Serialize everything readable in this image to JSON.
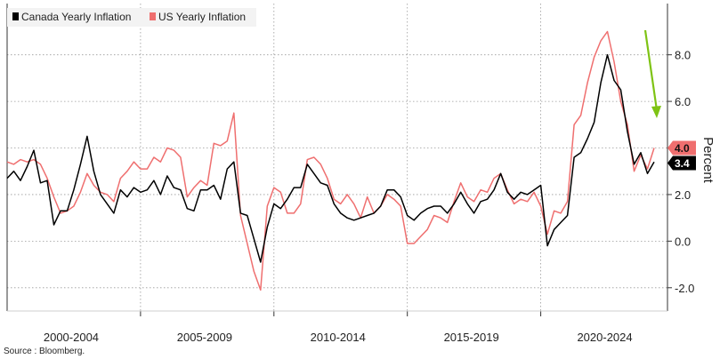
{
  "chart_data": {
    "type": "line",
    "ylabel": "Percent",
    "ylim": [
      -3.0,
      10.2
    ],
    "xlim": [
      2000.0,
      2024.75
    ],
    "yticks": [
      -2.0,
      0.0,
      2.0,
      4.0,
      6.0,
      8.0
    ],
    "ytick_labels": [
      "-2.0",
      "0.0",
      "2.0",
      "4.0",
      "6.0",
      "8.0"
    ],
    "xtick_labels": [
      "2000-2004",
      "2005-2009",
      "2010-2014",
      "2015-2019",
      "2020-2024"
    ],
    "grid": true,
    "legend_position": "top-left",
    "source": "Source : Bloomberg.",
    "series": [
      {
        "name": "Canada Yearly Inflation",
        "color": "#000000",
        "last_label": "3.4",
        "x": [
          2000.0,
          2000.25,
          2000.5,
          2000.75,
          2001.0,
          2001.25,
          2001.5,
          2001.75,
          2002.0,
          2002.25,
          2002.5,
          2002.75,
          2003.0,
          2003.25,
          2003.5,
          2003.75,
          2004.0,
          2004.25,
          2004.5,
          2004.75,
          2005.0,
          2005.25,
          2005.5,
          2005.75,
          2006.0,
          2006.25,
          2006.5,
          2006.75,
          2007.0,
          2007.25,
          2007.5,
          2007.75,
          2008.0,
          2008.25,
          2008.5,
          2008.75,
          2009.0,
          2009.25,
          2009.5,
          2009.75,
          2010.0,
          2010.25,
          2010.5,
          2010.75,
          2011.0,
          2011.25,
          2011.5,
          2011.75,
          2012.0,
          2012.25,
          2012.5,
          2012.75,
          2013.0,
          2013.25,
          2013.5,
          2013.75,
          2014.0,
          2014.25,
          2014.5,
          2014.75,
          2015.0,
          2015.25,
          2015.5,
          2015.75,
          2016.0,
          2016.25,
          2016.5,
          2016.75,
          2017.0,
          2017.25,
          2017.5,
          2017.75,
          2018.0,
          2018.25,
          2018.5,
          2018.75,
          2019.0,
          2019.25,
          2019.5,
          2019.75,
          2020.0,
          2020.25,
          2020.5,
          2020.75,
          2021.0,
          2021.25,
          2021.5,
          2021.75,
          2022.0,
          2022.25,
          2022.5,
          2022.75,
          2023.0,
          2023.25,
          2023.5,
          2023.75,
          2024.0,
          2024.25
        ],
        "values": [
          2.7,
          3.0,
          2.6,
          3.2,
          3.9,
          2.5,
          2.6,
          0.7,
          1.3,
          1.3,
          2.2,
          3.3,
          4.5,
          3.0,
          2.0,
          1.6,
          1.2,
          2.2,
          1.9,
          2.3,
          2.1,
          2.2,
          2.6,
          2.0,
          2.8,
          2.3,
          2.2,
          1.4,
          1.3,
          2.2,
          2.2,
          2.4,
          1.8,
          3.1,
          3.4,
          1.2,
          1.1,
          0.1,
          -0.9,
          0.6,
          1.6,
          1.4,
          1.8,
          2.3,
          2.3,
          3.3,
          2.9,
          2.5,
          2.4,
          1.6,
          1.2,
          1.0,
          0.9,
          1.0,
          1.1,
          1.2,
          1.5,
          2.2,
          2.2,
          1.9,
          1.1,
          0.9,
          1.2,
          1.4,
          1.5,
          1.5,
          1.2,
          1.6,
          2.1,
          1.6,
          1.2,
          1.7,
          1.8,
          2.2,
          2.9,
          2.1,
          1.8,
          2.1,
          2.0,
          2.2,
          2.4,
          -0.2,
          0.5,
          0.8,
          1.1,
          3.6,
          3.8,
          4.4,
          5.1,
          6.8,
          8.0,
          6.9,
          6.5,
          4.7,
          3.3,
          3.8,
          2.9,
          3.4
        ]
      },
      {
        "name": "US Yearly Inflation",
        "color": "#ef6f6f",
        "last_label": "4.0",
        "x": [
          2000.0,
          2000.25,
          2000.5,
          2000.75,
          2001.0,
          2001.25,
          2001.5,
          2001.75,
          2002.0,
          2002.25,
          2002.5,
          2002.75,
          2003.0,
          2003.25,
          2003.5,
          2003.75,
          2004.0,
          2004.25,
          2004.5,
          2004.75,
          2005.0,
          2005.25,
          2005.5,
          2005.75,
          2006.0,
          2006.25,
          2006.5,
          2006.75,
          2007.0,
          2007.25,
          2007.5,
          2007.75,
          2008.0,
          2008.25,
          2008.5,
          2008.75,
          2009.0,
          2009.25,
          2009.5,
          2009.75,
          2010.0,
          2010.25,
          2010.5,
          2010.75,
          2011.0,
          2011.25,
          2011.5,
          2011.75,
          2012.0,
          2012.25,
          2012.5,
          2012.75,
          2013.0,
          2013.25,
          2013.5,
          2013.75,
          2014.0,
          2014.25,
          2014.5,
          2014.75,
          2015.0,
          2015.25,
          2015.5,
          2015.75,
          2016.0,
          2016.25,
          2016.5,
          2016.75,
          2017.0,
          2017.25,
          2017.5,
          2017.75,
          2018.0,
          2018.25,
          2018.5,
          2018.75,
          2019.0,
          2019.25,
          2019.5,
          2019.75,
          2020.0,
          2020.25,
          2020.5,
          2020.75,
          2021.0,
          2021.25,
          2021.5,
          2021.75,
          2022.0,
          2022.25,
          2022.5,
          2022.75,
          2023.0,
          2023.25,
          2023.5,
          2023.75,
          2024.0,
          2024.25
        ],
        "values": [
          3.4,
          3.3,
          3.5,
          3.4,
          3.5,
          3.3,
          2.7,
          1.9,
          1.2,
          1.3,
          1.5,
          2.1,
          2.9,
          2.4,
          2.1,
          2.0,
          1.7,
          2.7,
          3.0,
          3.4,
          3.1,
          3.1,
          3.6,
          3.4,
          4.0,
          3.9,
          3.6,
          1.9,
          2.3,
          2.6,
          2.4,
          4.2,
          4.1,
          4.3,
          5.5,
          1.1,
          -0.1,
          -1.3,
          -2.1,
          1.5,
          2.3,
          2.1,
          1.2,
          1.2,
          1.6,
          3.5,
          3.6,
          3.3,
          2.7,
          1.8,
          1.6,
          2.0,
          1.6,
          1.0,
          1.9,
          1.2,
          1.5,
          2.0,
          1.8,
          1.5,
          -0.1,
          -0.1,
          0.2,
          0.5,
          1.1,
          1.0,
          0.8,
          1.7,
          2.5,
          1.9,
          1.7,
          2.2,
          2.1,
          2.7,
          2.9,
          2.2,
          1.6,
          1.8,
          1.7,
          2.1,
          1.5,
          0.3,
          1.3,
          1.2,
          1.7,
          5.0,
          5.4,
          6.8,
          7.9,
          8.6,
          9.0,
          7.7,
          6.0,
          5.0,
          3.0,
          3.7,
          3.1,
          4.0
        ]
      }
    ]
  }
}
